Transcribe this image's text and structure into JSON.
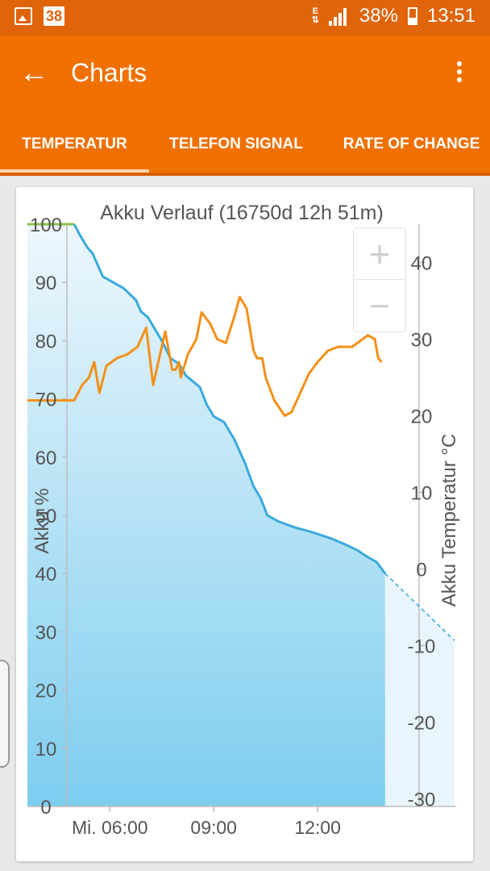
{
  "status_bar": {
    "notification_badge": "38",
    "network": "E",
    "battery_percent": "38%",
    "time": "13:51",
    "icons": [
      "gallery-icon",
      "signal-icon",
      "battery-icon"
    ]
  },
  "app_bar": {
    "title": "Charts",
    "back_icon": "arrow-left-icon",
    "menu_icon": "more-vert-icon"
  },
  "tabs": [
    {
      "label": "TEMPERATUR",
      "active": true
    },
    {
      "label": "TELEFON SIGNAL",
      "active": false
    },
    {
      "label": "RATE OF CHANGE",
      "active": false
    }
  ],
  "zoom": {
    "in_label": "+",
    "out_label": "−"
  },
  "colors": {
    "accent": "#f07000",
    "battery": "#3aa9dc",
    "temperature": "#f39019",
    "charging": "#8bc34a"
  },
  "chart_data": {
    "type": "line",
    "title": "Akku Verlauf (16750d 12h 51m)",
    "x_ticks": [
      "Mi. 06:00",
      "09:00",
      "12:00"
    ],
    "x_unit": "hours",
    "xlim": [
      3.62,
      16.0
    ],
    "y_left": {
      "label": "Akku %",
      "lim": [
        0,
        100
      ],
      "ticks": [
        "0",
        "10",
        "20",
        "30",
        "40",
        "50",
        "60",
        "70",
        "80",
        "90",
        "100"
      ]
    },
    "y_right": {
      "label": "Akku Temperatur °C",
      "lim": [
        -31,
        45
      ],
      "ticks": [
        "-30",
        "-20",
        "-10",
        "0",
        "10",
        "20",
        "30",
        "40"
      ]
    },
    "series": [
      {
        "name": "Akku %",
        "axis": "left",
        "color": "#3aa9dc",
        "points": [
          [
            4.97,
            100
          ],
          [
            5.15,
            98
          ],
          [
            5.35,
            96
          ],
          [
            5.5,
            95
          ],
          [
            5.65,
            93
          ],
          [
            5.8,
            91
          ],
          [
            6.1,
            90
          ],
          [
            6.4,
            89
          ],
          [
            6.75,
            87
          ],
          [
            6.9,
            85
          ],
          [
            7.1,
            84
          ],
          [
            7.3,
            82
          ],
          [
            7.5,
            80
          ],
          [
            7.75,
            77
          ],
          [
            8.0,
            76
          ],
          [
            8.2,
            74
          ],
          [
            8.4,
            73
          ],
          [
            8.6,
            72
          ],
          [
            8.8,
            69
          ],
          [
            9.0,
            67
          ],
          [
            9.3,
            66
          ],
          [
            9.6,
            63
          ],
          [
            9.9,
            59
          ],
          [
            10.15,
            55
          ],
          [
            10.35,
            53
          ],
          [
            10.55,
            50
          ],
          [
            10.85,
            49
          ],
          [
            11.3,
            48
          ],
          [
            11.9,
            47
          ],
          [
            12.4,
            46
          ],
          [
            12.8,
            45
          ],
          [
            13.15,
            44
          ],
          [
            13.4,
            43
          ],
          [
            13.7,
            42
          ],
          [
            13.95,
            40
          ]
        ],
        "forecast_points": [
          [
            13.95,
            40
          ],
          [
            15.95,
            28.5
          ]
        ]
      },
      {
        "name": "Akku Temperatur °C",
        "axis": "right",
        "color": "#f39019",
        "points": [
          [
            4.97,
            22
          ],
          [
            5.2,
            24
          ],
          [
            5.4,
            25
          ],
          [
            5.55,
            27
          ],
          [
            5.7,
            23
          ],
          [
            5.9,
            26.5
          ],
          [
            6.2,
            27.5
          ],
          [
            6.5,
            28
          ],
          [
            6.8,
            29
          ],
          [
            7.05,
            31.5
          ],
          [
            7.25,
            24
          ],
          [
            7.6,
            31
          ],
          [
            7.8,
            26
          ],
          [
            7.9,
            26
          ],
          [
            8.0,
            27
          ],
          [
            8.05,
            25
          ],
          [
            8.25,
            28
          ],
          [
            8.5,
            30
          ],
          [
            8.65,
            33.5
          ],
          [
            8.9,
            32
          ],
          [
            9.1,
            30
          ],
          [
            9.35,
            29.5
          ],
          [
            9.6,
            33
          ],
          [
            9.75,
            35.5
          ],
          [
            9.95,
            34
          ],
          [
            10.15,
            28.5
          ],
          [
            10.25,
            27.5
          ],
          [
            10.4,
            27.5
          ],
          [
            10.5,
            25
          ],
          [
            10.75,
            22
          ],
          [
            11.05,
            20
          ],
          [
            11.25,
            20.5
          ],
          [
            11.5,
            23
          ],
          [
            11.75,
            25.5
          ],
          [
            12.0,
            27
          ],
          [
            12.3,
            28.5
          ],
          [
            12.6,
            29
          ],
          [
            13.0,
            29
          ],
          [
            13.3,
            30
          ],
          [
            13.45,
            30.5
          ],
          [
            13.65,
            30
          ],
          [
            13.75,
            27.5
          ],
          [
            13.85,
            27
          ]
        ]
      },
      {
        "name": "",
        "axis": "left",
        "color": "#8bc34a",
        "points": [
          [
            3.62,
            100
          ],
          [
            4.97,
            100
          ]
        ]
      }
    ],
    "grid": false,
    "legend": "none"
  }
}
